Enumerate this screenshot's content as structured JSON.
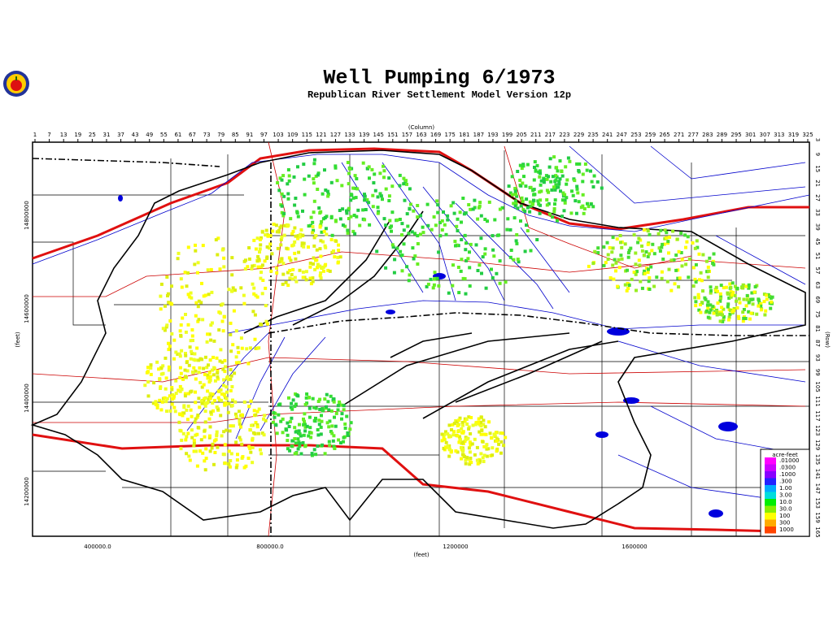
{
  "header": {
    "title": "Well Pumping   6/1973",
    "subtitle": "Republican River Settlement Model Version 12p"
  },
  "column_axis": {
    "label": "(Column)",
    "ticks": [
      1,
      7,
      13,
      19,
      25,
      31,
      37,
      43,
      49,
      55,
      61,
      67,
      73,
      79,
      85,
      91,
      97,
      103,
      109,
      115,
      121,
      127,
      133,
      139,
      145,
      151,
      157,
      163,
      169,
      175,
      181,
      187,
      193,
      199,
      205,
      211,
      217,
      223,
      229,
      235,
      241,
      247,
      253,
      259,
      265,
      271,
      277,
      283,
      289,
      295,
      301,
      307,
      313,
      319,
      325
    ]
  },
  "row_axis": {
    "label": "(Row)",
    "ticks": [
      3,
      9,
      15,
      21,
      27,
      33,
      39,
      45,
      51,
      57,
      63,
      69,
      75,
      81,
      87,
      93,
      99,
      105,
      111,
      117,
      123,
      129,
      135,
      141,
      147,
      153,
      159,
      165
    ]
  },
  "x_axis": {
    "label": "(feet)",
    "ticks": [
      "400000.0",
      "800000.0",
      "1200000",
      "1600000"
    ]
  },
  "y_axis": {
    "label": "(feet)",
    "ticks": [
      "14800000",
      "14600000",
      "14400000",
      "14200000"
    ]
  },
  "legend": {
    "title": "acre-feet",
    "entries": [
      {
        "label": ".01000",
        "color": "#ff00ff"
      },
      {
        "label": ".0300",
        "color": "#cc00ff"
      },
      {
        "label": ".1000",
        "color": "#8800ff"
      },
      {
        "label": ".300",
        "color": "#2222ff"
      },
      {
        "label": "1.00",
        "color": "#00aaff"
      },
      {
        "label": "3.00",
        "color": "#00dddd"
      },
      {
        "label": "10.0",
        "color": "#00ee00"
      },
      {
        "label": "30.0",
        "color": "#88ee00"
      },
      {
        "label": "100",
        "color": "#ffff00"
      },
      {
        "label": "300",
        "color": "#ffaa00"
      },
      {
        "label": "1000",
        "color": "#ff4400"
      }
    ]
  }
}
